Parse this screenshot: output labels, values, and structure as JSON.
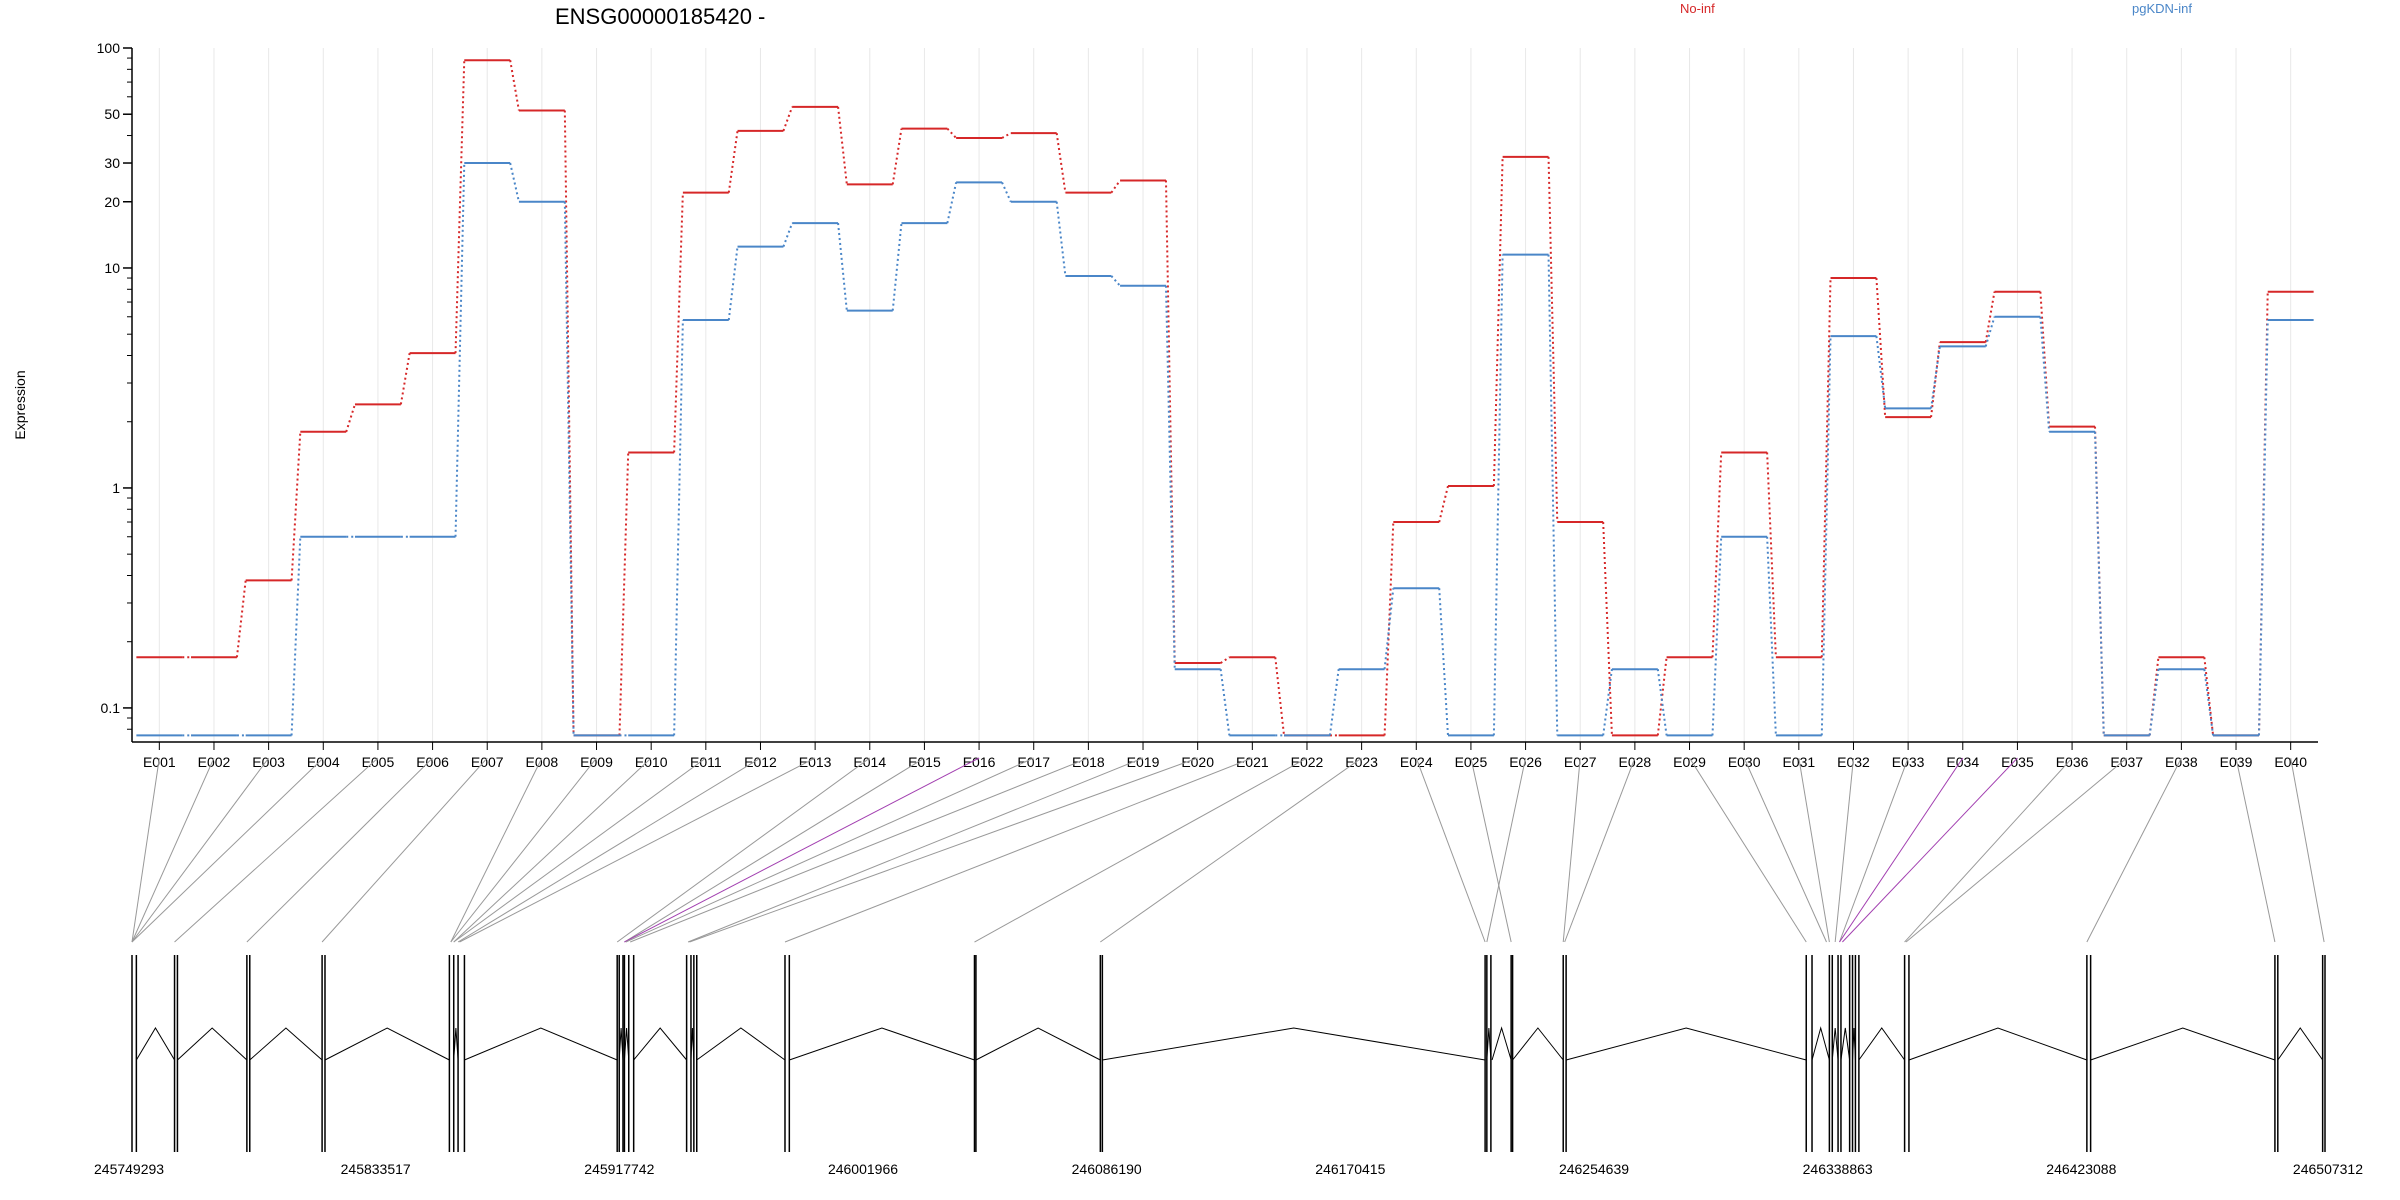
{
  "chart_data": {
    "type": "line",
    "title": "ENSG00000185420 -",
    "ylabel": "Expression",
    "y_scale": "log",
    "ylim": [
      0.07,
      100
    ],
    "y_ticks": [
      {
        "value": 0.1,
        "label": "0.1"
      },
      {
        "value": 1,
        "label": "1"
      },
      {
        "value": 10,
        "label": "10"
      },
      {
        "value": 20,
        "label": "20"
      },
      {
        "value": 30,
        "label": "30"
      },
      {
        "value": 50,
        "label": "50"
      },
      {
        "value": 100,
        "label": "100"
      }
    ],
    "categories": [
      "E001",
      "E002",
      "E003",
      "E004",
      "E005",
      "E006",
      "E007",
      "E008",
      "E009",
      "E010",
      "E011",
      "E012",
      "E013",
      "E014",
      "E015",
      "E016",
      "E017",
      "E018",
      "E019",
      "E020",
      "E021",
      "E022",
      "E023",
      "E024",
      "E025",
      "E026",
      "E027",
      "E028",
      "E029",
      "E030",
      "E031",
      "E032",
      "E033",
      "E034",
      "E035",
      "E036",
      "E037",
      "E038",
      "E039",
      "E040"
    ],
    "series": [
      {
        "name": "No-inf",
        "color": "#d62728",
        "values": [
          0.17,
          0.17,
          0.38,
          1.8,
          2.4,
          4.1,
          88,
          52,
          0.075,
          1.45,
          22,
          42,
          54,
          24,
          43,
          39,
          41,
          22,
          25,
          0.16,
          0.17,
          0.075,
          0.075,
          0.7,
          1.02,
          32,
          0.7,
          0.075,
          0.17,
          1.45,
          0.17,
          9,
          2.1,
          4.6,
          7.8,
          1.9,
          0.075,
          0.17,
          0.075,
          7.8
        ]
      },
      {
        "name": "pgKDN-inf",
        "color": "#4a86c8",
        "values": [
          0.075,
          0.075,
          0.075,
          0.6,
          0.6,
          0.6,
          30,
          20,
          0.075,
          0.075,
          5.8,
          12.5,
          16,
          6.4,
          16,
          24.5,
          20,
          9.2,
          8.3,
          0.15,
          0.075,
          0.075,
          0.15,
          0.35,
          0.075,
          11.5,
          0.075,
          0.15,
          0.075,
          0.6,
          0.075,
          4.9,
          2.3,
          4.4,
          6.0,
          1.8,
          0.075,
          0.15,
          0.075,
          5.8
        ]
      }
    ],
    "genomic_axis": {
      "range": [
        245749293,
        246507312
      ],
      "tick_labels": [
        "245749293",
        "245833517",
        "245917742",
        "246001966",
        "246086190",
        "246170415",
        "246254639",
        "246338863",
        "246423088",
        "246507312"
      ],
      "exon_bounds": [
        [
          245749293,
          245750800
        ],
        [
          245764000,
          245765000
        ],
        [
          245789000,
          245790000
        ],
        [
          245815000,
          245816000
        ],
        [
          245859000,
          245860500
        ],
        [
          245862000,
          245864200
        ],
        [
          245917000,
          245917700
        ],
        [
          245919000,
          245919500
        ],
        [
          245921000,
          245922700
        ],
        [
          245941000,
          245942500
        ],
        [
          245943500,
          245944500
        ],
        [
          245975000,
          245976500
        ],
        [
          246040500,
          246041000
        ],
        [
          246084000,
          246084700
        ],
        [
          246217000,
          246217600
        ],
        [
          246219000,
          246219400
        ],
        [
          246226000,
          246226500
        ],
        [
          246244000,
          246245000
        ],
        [
          246328000,
          246330000
        ],
        [
          246336000,
          246337000
        ],
        [
          246339000,
          246340000
        ],
        [
          246343000,
          246344000
        ],
        [
          246345000,
          246346200
        ],
        [
          246362000,
          246363500
        ],
        [
          246425000,
          246426300
        ],
        [
          246490000,
          246491000
        ],
        [
          246506500,
          246507312
        ]
      ],
      "exon_map": [
        {
          "exon": "E001",
          "pos": 245749293
        },
        {
          "exon": "E002",
          "pos": 245749293
        },
        {
          "exon": "E003",
          "pos": 245749293
        },
        {
          "exon": "E004",
          "pos": 245749293
        },
        {
          "exon": "E005",
          "pos": 245764000
        },
        {
          "exon": "E006",
          "pos": 245789000
        },
        {
          "exon": "E007",
          "pos": 245815000
        },
        {
          "exon": "E008",
          "pos": 245859500
        },
        {
          "exon": "E009",
          "pos": 245859500
        },
        {
          "exon": "E010",
          "pos": 245860500
        },
        {
          "exon": "E011",
          "pos": 245860500
        },
        {
          "exon": "E012",
          "pos": 245862000
        },
        {
          "exon": "E013",
          "pos": 245862500
        },
        {
          "exon": "E014",
          "pos": 245917000
        },
        {
          "exon": "E015",
          "pos": 245919500
        },
        {
          "exon": "E016",
          "pos": 245919500,
          "highlight": true
        },
        {
          "exon": "E017",
          "pos": 245920000
        },
        {
          "exon": "E018",
          "pos": 245921500
        },
        {
          "exon": "E019",
          "pos": 245941500
        },
        {
          "exon": "E020",
          "pos": 245942000
        },
        {
          "exon": "E021",
          "pos": 245975000
        },
        {
          "exon": "E022",
          "pos": 246040500
        },
        {
          "exon": "E023",
          "pos": 246084000
        },
        {
          "exon": "E024",
          "pos": 246217000
        },
        {
          "exon": "E025",
          "pos": 246226000
        },
        {
          "exon": "E026",
          "pos": 246217600
        },
        {
          "exon": "E027",
          "pos": 246244000
        },
        {
          "exon": "E028",
          "pos": 246244500
        },
        {
          "exon": "E029",
          "pos": 246328000
        },
        {
          "exon": "E030",
          "pos": 246335000
        },
        {
          "exon": "E031",
          "pos": 246336000
        },
        {
          "exon": "E032",
          "pos": 246338000
        },
        {
          "exon": "E033",
          "pos": 246339500
        },
        {
          "exon": "E034",
          "pos": 246339500,
          "highlight": true
        },
        {
          "exon": "E035",
          "pos": 246340500,
          "highlight": true
        },
        {
          "exon": "E036",
          "pos": 246362000
        },
        {
          "exon": "E037",
          "pos": 246362500
        },
        {
          "exon": "E038",
          "pos": 246425000
        },
        {
          "exon": "E039",
          "pos": 246490000
        },
        {
          "exon": "E040",
          "pos": 246507000
        }
      ]
    }
  }
}
